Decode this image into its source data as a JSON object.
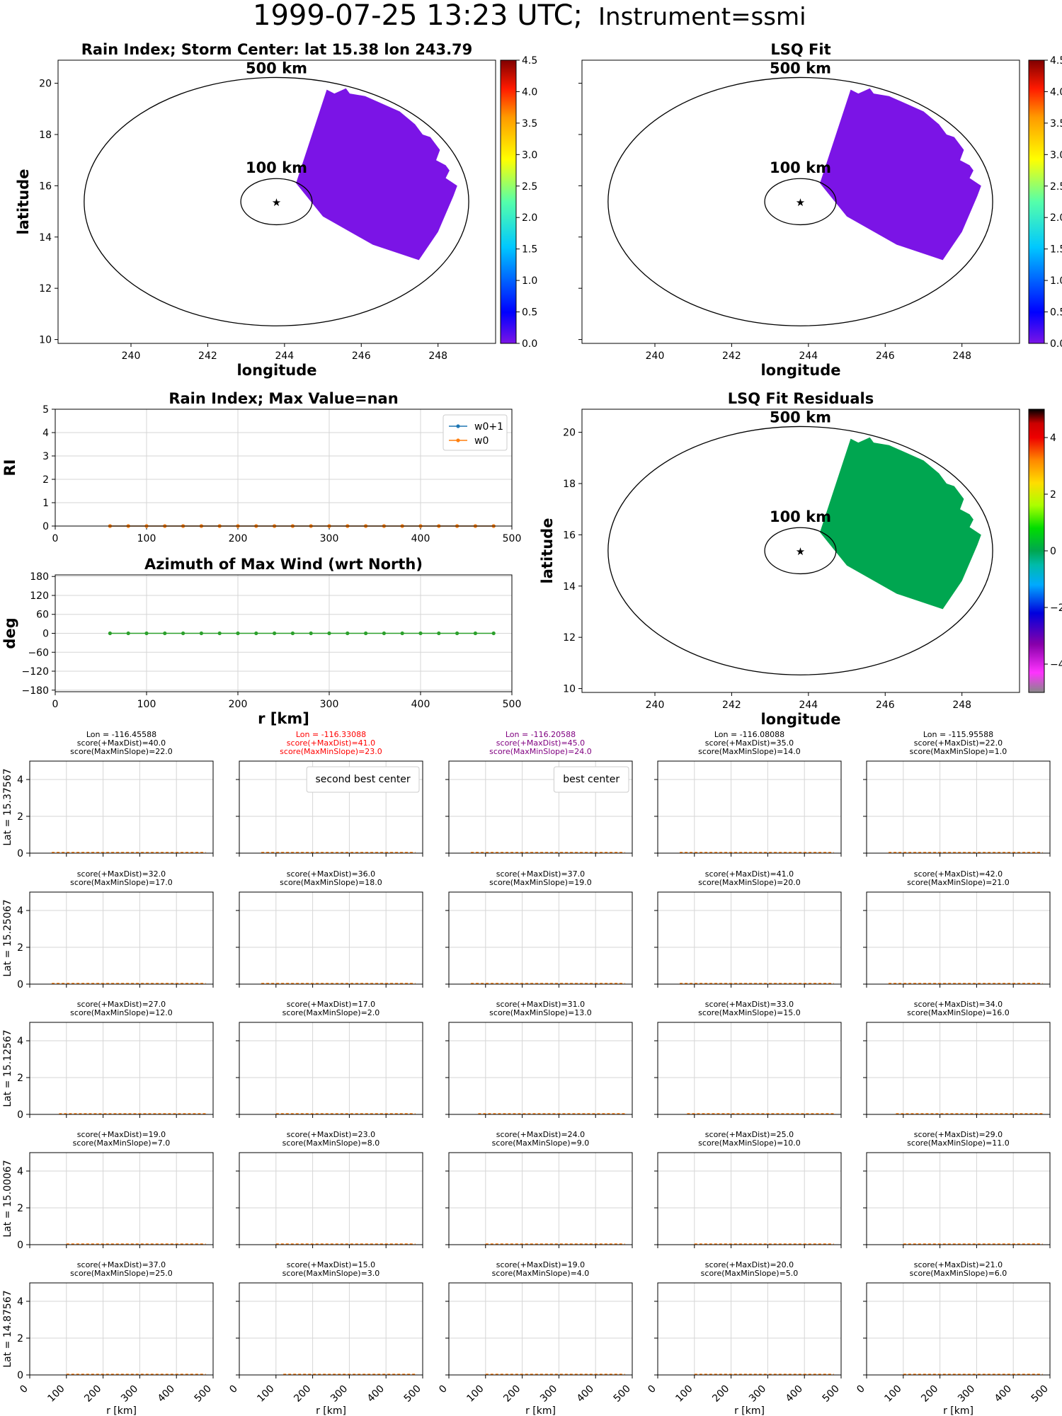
{
  "figure": {
    "title_main": "1999-07-25 13:23 UTC;",
    "title_instrument": "Instrument=ssmi"
  },
  "map_common": {
    "xlabel": "longitude",
    "ylabel": "latitude",
    "xticks": [
      240,
      242,
      244,
      246,
      248
    ],
    "yticks": [
      10,
      12,
      14,
      16,
      18,
      20
    ],
    "xlim": [
      238.1,
      249.5
    ],
    "ylim": [
      9.85,
      20.9
    ],
    "ring_labels": [
      "500 km",
      "100 km"
    ],
    "storm_center": {
      "lat": 15.38,
      "lon": 243.79
    },
    "swath_polygon": [
      [
        244.3,
        16.1
      ],
      [
        245.1,
        19.75
      ],
      [
        245.3,
        19.6
      ],
      [
        245.6,
        19.8
      ],
      [
        245.7,
        19.6
      ],
      [
        246.1,
        19.5
      ],
      [
        247.0,
        18.9
      ],
      [
        247.4,
        18.4
      ],
      [
        247.6,
        18.0
      ],
      [
        247.8,
        17.9
      ],
      [
        248.05,
        17.4
      ],
      [
        247.95,
        17.0
      ],
      [
        248.2,
        16.8
      ],
      [
        248.3,
        16.6
      ],
      [
        248.2,
        16.3
      ],
      [
        248.5,
        16.0
      ],
      [
        248.4,
        15.6
      ],
      [
        248.0,
        14.2
      ],
      [
        247.5,
        13.1
      ],
      [
        246.3,
        13.7
      ],
      [
        245.0,
        14.8
      ]
    ]
  },
  "chart_data": [
    {
      "type": "heatmap",
      "panel": "rain-index-map",
      "title": "Rain Index; Storm Center: lat 15.38 lon 243.79",
      "swath_value": 0.0,
      "swath_color": "#7b14e6",
      "colorbar": {
        "min": 0.0,
        "max": 4.5,
        "ticks": [
          "0.0",
          "0.5",
          "1.0",
          "1.5",
          "2.0",
          "2.5",
          "3.0",
          "3.5",
          "4.0",
          "4.5"
        ],
        "colormap": "jet"
      }
    },
    {
      "type": "heatmap",
      "panel": "lsq-fit-map",
      "title": "LSQ Fit",
      "swath_value": 0.0,
      "swath_color": "#7b14e6",
      "colorbar": {
        "min": 0.0,
        "max": 4.5,
        "ticks": [
          "0.0",
          "0.5",
          "1.0",
          "1.5",
          "2.0",
          "2.5",
          "3.0",
          "3.5",
          "4.0",
          "4.5"
        ],
        "colormap": "jet"
      }
    },
    {
      "type": "heatmap",
      "panel": "lsq-residuals-map",
      "title": "LSQ Fit Residuals",
      "swath_value": 0.0,
      "swath_color": "#00a650",
      "colorbar": {
        "min": -5,
        "max": 5,
        "ticks": [
          "−4",
          "−2",
          "0",
          "2",
          "4"
        ],
        "colormap": "nipy_spectral"
      }
    },
    {
      "type": "line",
      "panel": "rain-index-profile",
      "title": "Rain Index; Max Value=nan",
      "xlabel": "",
      "ylabel": "RI",
      "xlim": [
        0,
        500
      ],
      "ylim": [
        0,
        5
      ],
      "xticks": [
        0,
        100,
        200,
        300,
        400,
        500
      ],
      "yticks": [
        0,
        1,
        2,
        3,
        4,
        5
      ],
      "x": [
        60,
        80,
        100,
        120,
        140,
        160,
        180,
        200,
        220,
        240,
        260,
        280,
        300,
        320,
        340,
        360,
        380,
        400,
        420,
        440,
        460,
        480
      ],
      "series": [
        {
          "name": "w0+1",
          "color": "#1f77b4",
          "marker": "star",
          "values": [
            0,
            0,
            0,
            0,
            0,
            0,
            0,
            0,
            0,
            0,
            0,
            0,
            0,
            0,
            0,
            0,
            0,
            0,
            0,
            0,
            0,
            0
          ]
        },
        {
          "name": "w0",
          "color": "#ff7f0e",
          "marker": "dot",
          "values": [
            0,
            0,
            0,
            0,
            0,
            0,
            0,
            0,
            0,
            0,
            0,
            0,
            0,
            0,
            0,
            0,
            0,
            0,
            0,
            0,
            0,
            0
          ]
        }
      ],
      "legend": "top-right",
      "grid": true
    },
    {
      "type": "line",
      "panel": "azimuth-profile",
      "title": "Azimuth of Max Wind (wrt North)",
      "xlabel": "r [km]",
      "ylabel": "deg",
      "xlim": [
        0,
        500
      ],
      "ylim": [
        -185,
        185
      ],
      "xticks": [
        0,
        100,
        200,
        300,
        400,
        500
      ],
      "yticks": [
        -180,
        -120,
        -60,
        0,
        60,
        120,
        180
      ],
      "x": [
        60,
        80,
        100,
        120,
        140,
        160,
        180,
        200,
        220,
        240,
        260,
        280,
        300,
        320,
        340,
        360,
        380,
        400,
        420,
        440,
        460,
        480
      ],
      "series": [
        {
          "color": "#2ca02c",
          "marker": "dot",
          "values": [
            0,
            0,
            0,
            0,
            0,
            0,
            0,
            0,
            0,
            0,
            0,
            0,
            0,
            0,
            0,
            0,
            0,
            0,
            0,
            0,
            0,
            0
          ]
        }
      ],
      "grid": true
    },
    {
      "type": "line",
      "panel": "candidate-center-grid",
      "xlabel": "r [km]",
      "xlim": [
        0,
        500
      ],
      "ylim": [
        0,
        5
      ],
      "xticks": [
        0,
        100,
        200,
        300,
        400,
        500
      ],
      "yticks": [
        0,
        2,
        4
      ],
      "grid": true,
      "lat_labels": [
        "Lat = 15.37567",
        "Lat = 15.25067",
        "Lat = 15.12567",
        "Lat = 15.00067",
        "Lat = 14.87567"
      ],
      "lon_labels": [
        "Lon = -116.45588",
        "Lon = -116.33088",
        "Lon = -116.20588",
        "Lon = -116.08088",
        "Lon = -115.95588"
      ],
      "cells": [
        [
          {
            "l1": "score(+MaxDist)=40.0",
            "l2": "score(MaxMinSlope)=22.0",
            "r0": 60
          },
          {
            "l1": "score(+MaxDist)=41.0",
            "l2": "score(MaxMinSlope)=23.0",
            "r0": 60,
            "color": "#ff0000",
            "legend": "second best center"
          },
          {
            "l1": "score(+MaxDist)=45.0",
            "l2": "score(MaxMinSlope)=24.0",
            "r0": 60,
            "color": "#800080",
            "legend": "best center"
          },
          {
            "l1": "score(+MaxDist)=35.0",
            "l2": "score(MaxMinSlope)=14.0",
            "r0": 60
          },
          {
            "l1": "score(+MaxDist)=22.0",
            "l2": "score(MaxMinSlope)=1.0",
            "r0": 60
          }
        ],
        [
          {
            "l1": "score(+MaxDist)=32.0",
            "l2": "score(MaxMinSlope)=17.0",
            "r0": 60
          },
          {
            "l1": "score(+MaxDist)=36.0",
            "l2": "score(MaxMinSlope)=18.0",
            "r0": 60
          },
          {
            "l1": "score(+MaxDist)=37.0",
            "l2": "score(MaxMinSlope)=19.0",
            "r0": 60
          },
          {
            "l1": "score(+MaxDist)=41.0",
            "l2": "score(MaxMinSlope)=20.0",
            "r0": 60
          },
          {
            "l1": "score(+MaxDist)=42.0",
            "l2": "score(MaxMinSlope)=21.0",
            "r0": 60
          }
        ],
        [
          {
            "l1": "score(+MaxDist)=27.0",
            "l2": "score(MaxMinSlope)=12.0",
            "r0": 80
          },
          {
            "l1": "score(+MaxDist)=17.0",
            "l2": "score(MaxMinSlope)=2.0",
            "r0": 100
          },
          {
            "l1": "score(+MaxDist)=31.0",
            "l2": "score(MaxMinSlope)=13.0",
            "r0": 80
          },
          {
            "l1": "score(+MaxDist)=33.0",
            "l2": "score(MaxMinSlope)=15.0",
            "r0": 80
          },
          {
            "l1": "score(+MaxDist)=34.0",
            "l2": "score(MaxMinSlope)=16.0",
            "r0": 80
          }
        ],
        [
          {
            "l1": "score(+MaxDist)=19.0",
            "l2": "score(MaxMinSlope)=7.0",
            "r0": 100
          },
          {
            "l1": "score(+MaxDist)=23.0",
            "l2": "score(MaxMinSlope)=8.0",
            "r0": 100
          },
          {
            "l1": "score(+MaxDist)=24.0",
            "l2": "score(MaxMinSlope)=9.0",
            "r0": 100
          },
          {
            "l1": "score(+MaxDist)=25.0",
            "l2": "score(MaxMinSlope)=10.0",
            "r0": 100
          },
          {
            "l1": "score(+MaxDist)=29.0",
            "l2": "score(MaxMinSlope)=11.0",
            "r0": 100
          }
        ],
        [
          {
            "l1": "score(+MaxDist)=37.0",
            "l2": "score(MaxMinSlope)=25.0",
            "r0": 100
          },
          {
            "l1": "score(+MaxDist)=15.0",
            "l2": "score(MaxMinSlope)=3.0",
            "r0": 120
          },
          {
            "l1": "score(+MaxDist)=19.0",
            "l2": "score(MaxMinSlope)=4.0",
            "r0": 100
          },
          {
            "l1": "score(+MaxDist)=20.0",
            "l2": "score(MaxMinSlope)=5.0",
            "r0": 100
          },
          {
            "l1": "score(+MaxDist)=21.0",
            "l2": "score(MaxMinSlope)=6.0",
            "r0": 100
          }
        ]
      ]
    }
  ]
}
